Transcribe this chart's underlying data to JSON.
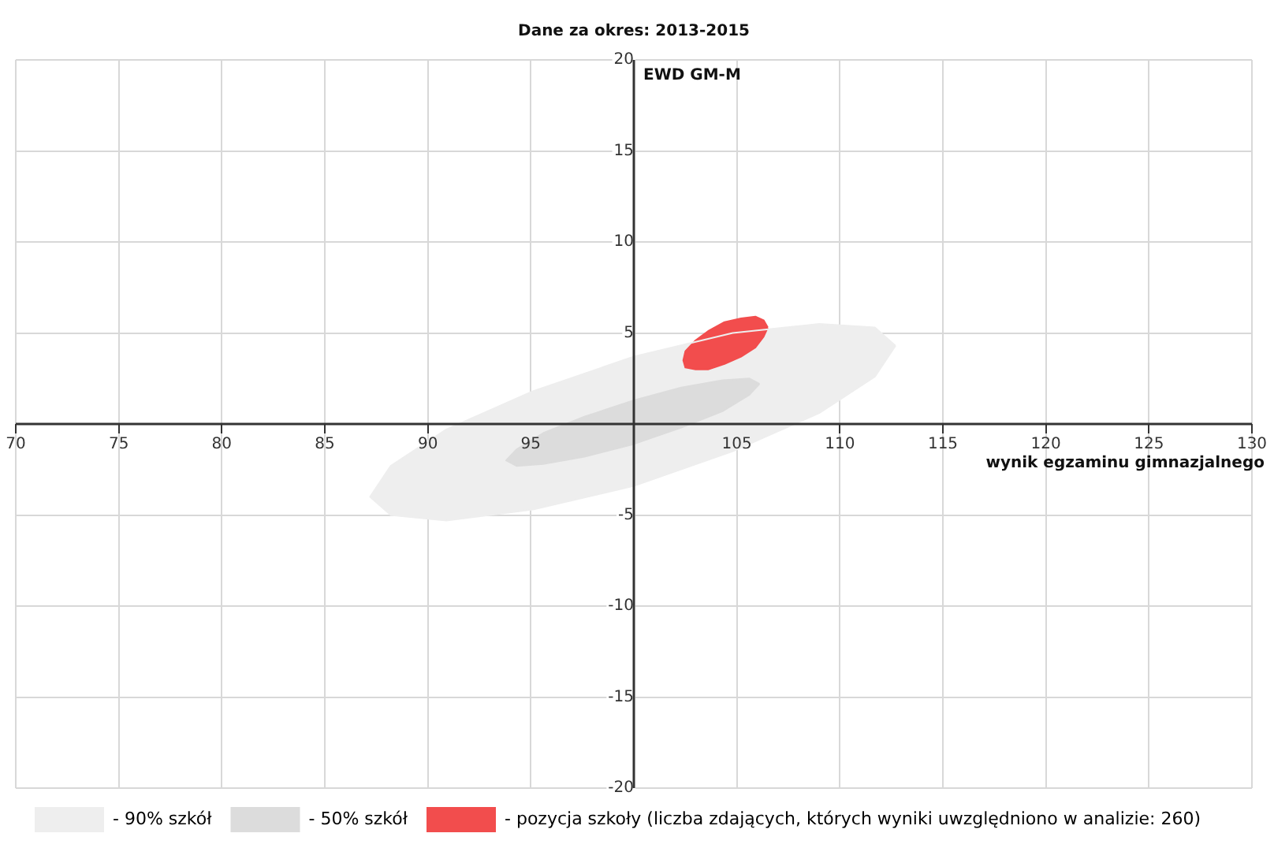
{
  "chart_data": {
    "type": "area",
    "title": "Dane za okres: 2013-2015",
    "xlabel": "wynik egzaminu gimnazjalnego",
    "ylabel": "EWD GM-M",
    "xlim": [
      70,
      130
    ],
    "xticks": [
      70,
      75,
      80,
      85,
      90,
      95,
      {
        "value": 100,
        "label": null
      },
      105,
      110,
      115,
      120,
      125,
      130
    ],
    "ylim": [
      -20,
      20
    ],
    "yticks": [
      -20,
      -15,
      -10,
      -5,
      {
        "value": 0,
        "label": null
      },
      5,
      10,
      15,
      20
    ],
    "grid": true,
    "legend": "bottom",
    "marker": "none",
    "series": [
      {
        "name": "- 90% szkół",
        "color": "#eeeeee",
        "x": [
          112.7,
          111.7,
          109.0,
          104.8,
          100.0,
          95.1,
          90.9,
          88.2,
          87.2,
          88.2,
          90.9,
          95.1,
          100.0,
          104.8,
          109.0,
          111.7,
          112.7
        ],
        "values": [
          4.3,
          5.3,
          5.5,
          5.0,
          3.7,
          1.8,
          -0.3,
          -2.3,
          -4.0,
          -5.0,
          -5.3,
          -4.7,
          -3.4,
          -1.5,
          0.6,
          2.6,
          4.3
        ]
      },
      {
        "name": "- 50% szkół",
        "color": "#dcdcdc",
        "x": [
          106.1,
          105.6,
          104.3,
          102.3,
          100.0,
          97.6,
          95.6,
          94.3,
          93.8,
          94.3,
          95.6,
          97.6,
          100.0,
          102.3,
          104.3,
          105.6,
          106.1
        ],
        "values": [
          2.2,
          2.5,
          2.4,
          2.0,
          1.3,
          0.4,
          -0.5,
          -1.4,
          -2.0,
          -2.3,
          -2.2,
          -1.8,
          -1.1,
          -0.2,
          0.7,
          1.6,
          2.2
        ]
      },
      {
        "name": "- pozycja szkoły (liczba zdających, których wyniki uwzględniono w analizie: 260)",
        "color": "#f24d4d",
        "x": [
          106.5,
          106.3,
          105.9,
          105.2,
          104.4,
          103.6,
          103.0,
          102.5,
          102.4,
          102.5,
          103.0,
          103.6,
          104.4,
          105.2,
          105.9,
          106.3,
          106.5
        ],
        "values": [
          5.3,
          5.7,
          5.9,
          5.8,
          5.6,
          5.1,
          4.6,
          4.0,
          3.5,
          3.1,
          3.0,
          3.0,
          3.3,
          3.7,
          4.2,
          4.8,
          5.3
        ]
      }
    ]
  }
}
